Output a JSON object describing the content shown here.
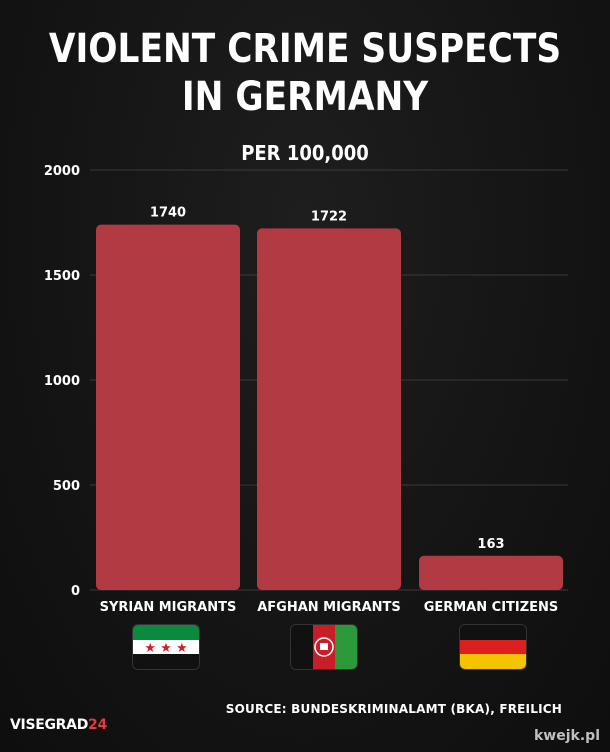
{
  "title_line1": "VIOLENT CRIME SUSPECTS",
  "title_line2": "IN GERMANY",
  "subtitle": "PER 100,000",
  "chart_data": {
    "type": "bar",
    "categories": [
      "SYRIAN MIGRANTS",
      "AFGHAN MIGRANTS",
      "GERMAN CITIZENS"
    ],
    "values": [
      1740,
      1722,
      163
    ],
    "data_labels": [
      "1740",
      "1722",
      "163"
    ],
    "yticks": [
      0,
      500,
      1000,
      1500,
      2000
    ],
    "ylim": [
      0,
      2000
    ],
    "grid": true,
    "bar_color": "#b23a43"
  },
  "flags": [
    "syria-revolution-flag-icon",
    "afghanistan-flag-icon",
    "germany-flag-icon"
  ],
  "source": "SOURCE:  BUNDESKRIMINALAMT (BKA), FREILICH",
  "logo_text": "VISEGRAD",
  "logo_number": "24",
  "watermark": "kwejk.pl"
}
